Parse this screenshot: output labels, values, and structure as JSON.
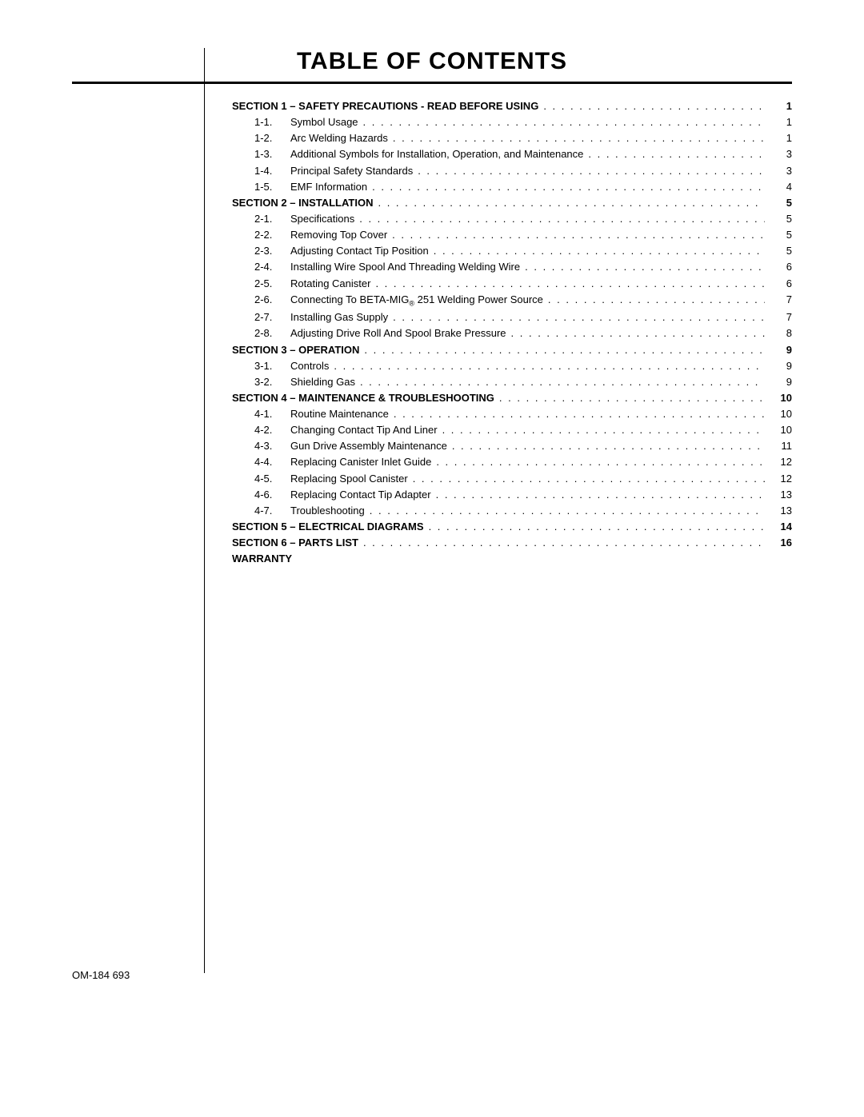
{
  "title": "TABLE OF CONTENTS",
  "footer": "OM-184 693",
  "toc": [
    {
      "type": "section",
      "label": "SECTION 1 – SAFETY PRECAUTIONS - READ BEFORE USING",
      "page": "1"
    },
    {
      "type": "sub",
      "num": "1-1.",
      "label": "Symbol Usage",
      "page": "1"
    },
    {
      "type": "sub",
      "num": "1-2.",
      "label": "Arc Welding Hazards",
      "page": "1"
    },
    {
      "type": "sub",
      "num": "1-3.",
      "label": "Additional Symbols for Installation, Operation, and Maintenance",
      "page": "3"
    },
    {
      "type": "sub",
      "num": "1-4.",
      "label": "Principal Safety Standards",
      "page": "3"
    },
    {
      "type": "sub",
      "num": "1-5.",
      "label": "EMF Information",
      "page": "4"
    },
    {
      "type": "section",
      "label": "SECTION 2 – INSTALLATION",
      "page": "5"
    },
    {
      "type": "sub",
      "num": "2-1.",
      "label": "Specifications",
      "page": "5"
    },
    {
      "type": "sub",
      "num": "2-2.",
      "label": "Removing Top Cover",
      "page": "5"
    },
    {
      "type": "sub",
      "num": "2-3.",
      "label": "Adjusting Contact Tip Position",
      "page": "5"
    },
    {
      "type": "sub",
      "num": "2-4.",
      "label": "Installing Wire Spool And Threading Welding Wire",
      "page": "6"
    },
    {
      "type": "sub",
      "num": "2-5.",
      "label": "Rotating Canister",
      "page": "6"
    },
    {
      "type": "sub",
      "num": "2-6.",
      "label_html": "Connecting To BETA-MIG<span class=\"reg\">®</span> 251 Welding Power Source",
      "page": "7"
    },
    {
      "type": "sub",
      "num": "2-7.",
      "label": "Installing Gas Supply",
      "page": "7"
    },
    {
      "type": "sub",
      "num": "2-8.",
      "label": "Adjusting Drive Roll And Spool Brake Pressure",
      "page": "8"
    },
    {
      "type": "section",
      "label": "SECTION 3 – OPERATION",
      "page": "9"
    },
    {
      "type": "sub",
      "num": "3-1.",
      "label": "Controls",
      "page": "9"
    },
    {
      "type": "sub",
      "num": "3-2.",
      "label": "Shielding Gas",
      "page": "9"
    },
    {
      "type": "section",
      "label": "SECTION 4 – MAINTENANCE & TROUBLESHOOTING",
      "page": "10"
    },
    {
      "type": "sub",
      "num": "4-1.",
      "label": "Routine Maintenance",
      "page": "10"
    },
    {
      "type": "sub",
      "num": "4-2.",
      "label": "Changing Contact Tip And Liner",
      "page": "10"
    },
    {
      "type": "sub",
      "num": "4-3.",
      "label": "Gun Drive Assembly Maintenance",
      "page": "11"
    },
    {
      "type": "sub",
      "num": "4-4.",
      "label": "Replacing Canister Inlet Guide",
      "page": "12"
    },
    {
      "type": "sub",
      "num": "4-5.",
      "label": "Replacing Spool Canister",
      "page": "12"
    },
    {
      "type": "sub",
      "num": "4-6.",
      "label": "Replacing Contact Tip Adapter",
      "page": "13"
    },
    {
      "type": "sub",
      "num": "4-7.",
      "label": "Troubleshooting",
      "page": "13"
    },
    {
      "type": "section",
      "label": "SECTION 5 – ELECTRICAL DIAGRAMS",
      "page": "14"
    },
    {
      "type": "section",
      "label": "SECTION 6 – PARTS LIST",
      "page": "16"
    },
    {
      "type": "section",
      "label": "Warranty",
      "nopage": true
    }
  ],
  "colors": {
    "text": "#000000",
    "background": "#ffffff"
  },
  "typography": {
    "title_pt": 30,
    "body_pt": 13,
    "font": "Arial"
  }
}
